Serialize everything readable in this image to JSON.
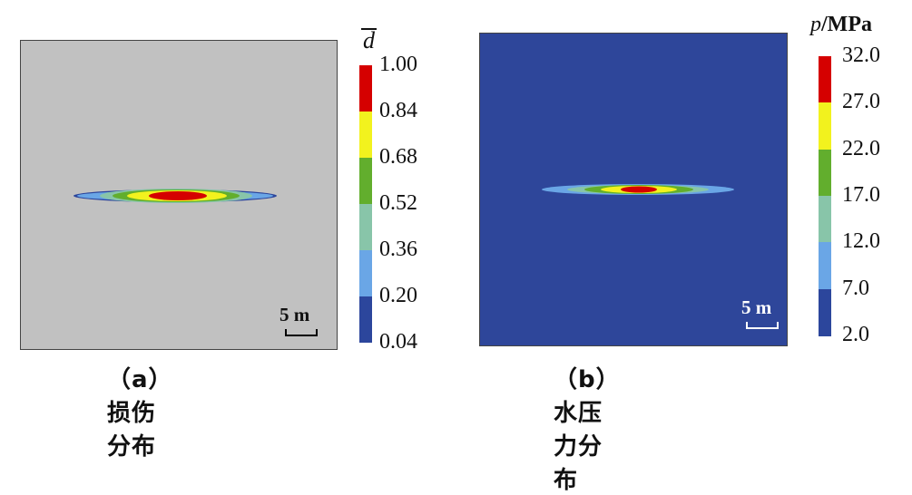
{
  "panel_a": {
    "caption": "（a）损伤分布",
    "legend_title": "d",
    "legend_title_overbar": true,
    "legend_ticks": [
      "1.00",
      "0.84",
      "0.68",
      "0.52",
      "0.36",
      "0.20",
      "0.04"
    ],
    "legend_colors": [
      "#d50000",
      "#f2f21e",
      "#62ae2d",
      "#88c5a9",
      "#6aa6e6",
      "#2c469c"
    ],
    "scale_label": "5 m",
    "background_color": "#c1c1c1"
  },
  "panel_b": {
    "caption": "（b）水压力分布",
    "legend_title_var": "p",
    "legend_title_unit": "/MPa",
    "legend_ticks": [
      "32.0",
      "27.0",
      "22.0",
      "17.0",
      "12.0",
      "7.0",
      "2.0"
    ],
    "legend_colors": [
      "#d50000",
      "#f2f21e",
      "#62ae2d",
      "#88c5a9",
      "#6aa6e6",
      "#2c469c"
    ],
    "scale_label": "5 m",
    "background_color": "#2e469a"
  }
}
